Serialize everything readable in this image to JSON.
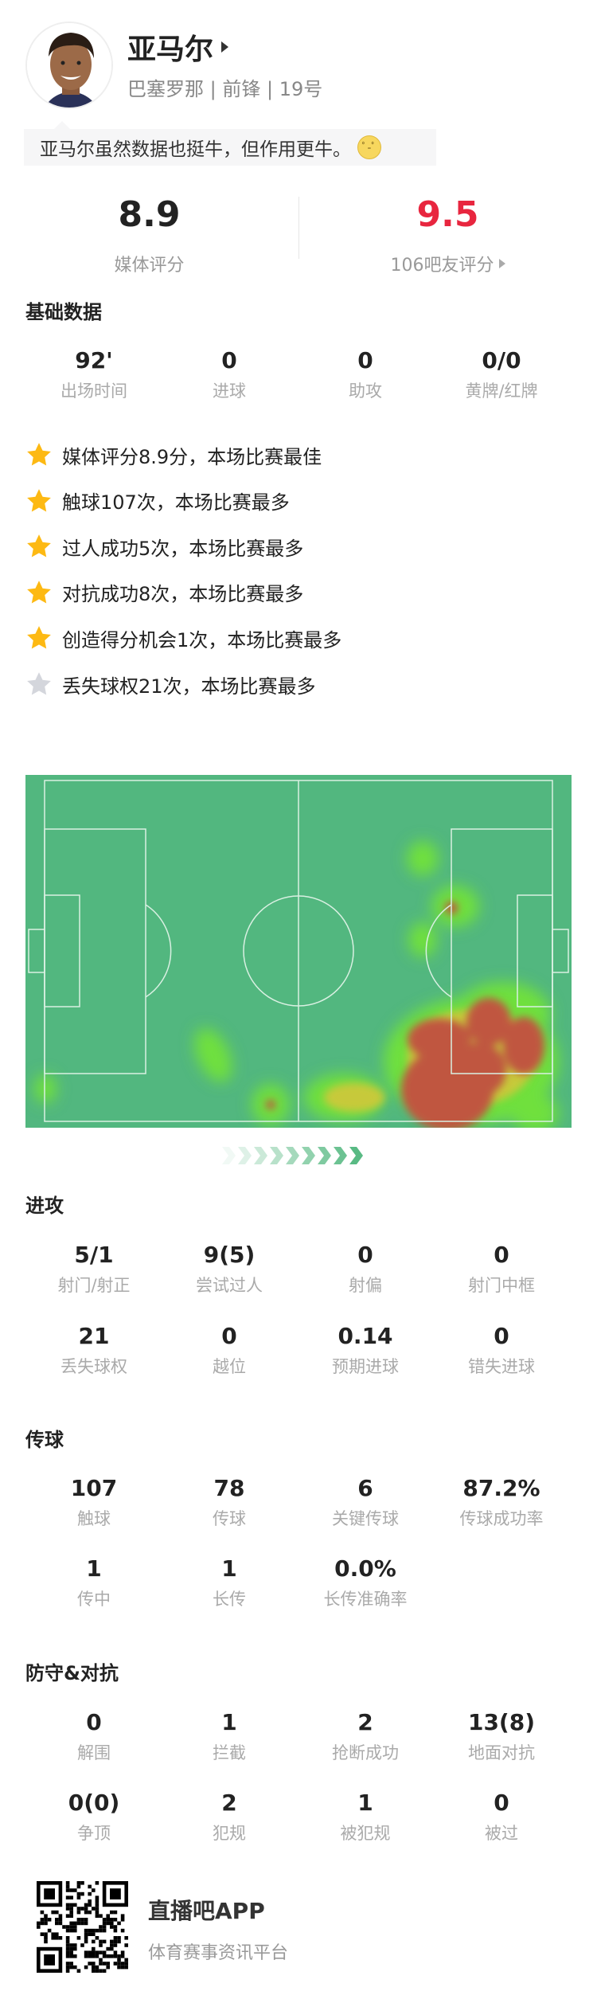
{
  "player": {
    "name": "亚马尔",
    "team": "巴塞罗那",
    "position": "前锋",
    "number": "19号",
    "separator": "|"
  },
  "comment": {
    "text": "亚马尔虽然数据也挺牛，但作用更牛。",
    "emoji": "doge-emoji"
  },
  "ratings": {
    "media": {
      "value": "8.9",
      "label": "媒体评分"
    },
    "fans": {
      "value": "9.5",
      "label": "106吧友评分",
      "color": "#e8263f"
    }
  },
  "basic": {
    "title": "基础数据",
    "stats": [
      {
        "value": "92'",
        "label": "出场时间"
      },
      {
        "value": "0",
        "label": "进球"
      },
      {
        "value": "0",
        "label": "助攻"
      },
      {
        "value": "0/0",
        "label": "黄牌/红牌"
      }
    ]
  },
  "highlights": [
    {
      "text": "媒体评分8.9分，本场比赛最佳",
      "star": "gold"
    },
    {
      "text": "触球107次，本场比赛最多",
      "star": "gold"
    },
    {
      "text": "过人成功5次，本场比赛最多",
      "star": "gold"
    },
    {
      "text": "对抗成功8次，本场比赛最多",
      "star": "gold"
    },
    {
      "text": "创造得分机会1次，本场比赛最多",
      "star": "gold"
    },
    {
      "text": "丢失球权21次，本场比赛最多",
      "star": "gray"
    }
  ],
  "heatmap": {
    "attack_direction": "right",
    "pitch_color": "#52b77f"
  },
  "attack": {
    "title": "进攻",
    "stats": [
      {
        "value": "5/1",
        "label": "射门/射正"
      },
      {
        "value": "9(5)",
        "label": "尝试过人"
      },
      {
        "value": "0",
        "label": "射偏"
      },
      {
        "value": "0",
        "label": "射门中框"
      },
      {
        "value": "21",
        "label": "丢失球权"
      },
      {
        "value": "0",
        "label": "越位"
      },
      {
        "value": "0.14",
        "label": "预期进球"
      },
      {
        "value": "0",
        "label": "错失进球"
      }
    ]
  },
  "passing": {
    "title": "传球",
    "stats": [
      {
        "value": "107",
        "label": "触球"
      },
      {
        "value": "78",
        "label": "传球"
      },
      {
        "value": "6",
        "label": "关键传球"
      },
      {
        "value": "87.2%",
        "label": "传球成功率"
      },
      {
        "value": "1",
        "label": "传中"
      },
      {
        "value": "1",
        "label": "长传"
      },
      {
        "value": "0.0%",
        "label": "长传准确率"
      }
    ]
  },
  "defense": {
    "title": "防守&对抗",
    "stats": [
      {
        "value": "0",
        "label": "解围"
      },
      {
        "value": "1",
        "label": "拦截"
      },
      {
        "value": "2",
        "label": "抢断成功"
      },
      {
        "value": "13(8)",
        "label": "地面对抗"
      },
      {
        "value": "0(0)",
        "label": "争顶"
      },
      {
        "value": "2",
        "label": "犯规"
      },
      {
        "value": "1",
        "label": "被犯规"
      },
      {
        "value": "0",
        "label": "被过"
      }
    ]
  },
  "footer": {
    "app_name": "直播吧APP",
    "slogan": "体育赛事资讯平台"
  }
}
